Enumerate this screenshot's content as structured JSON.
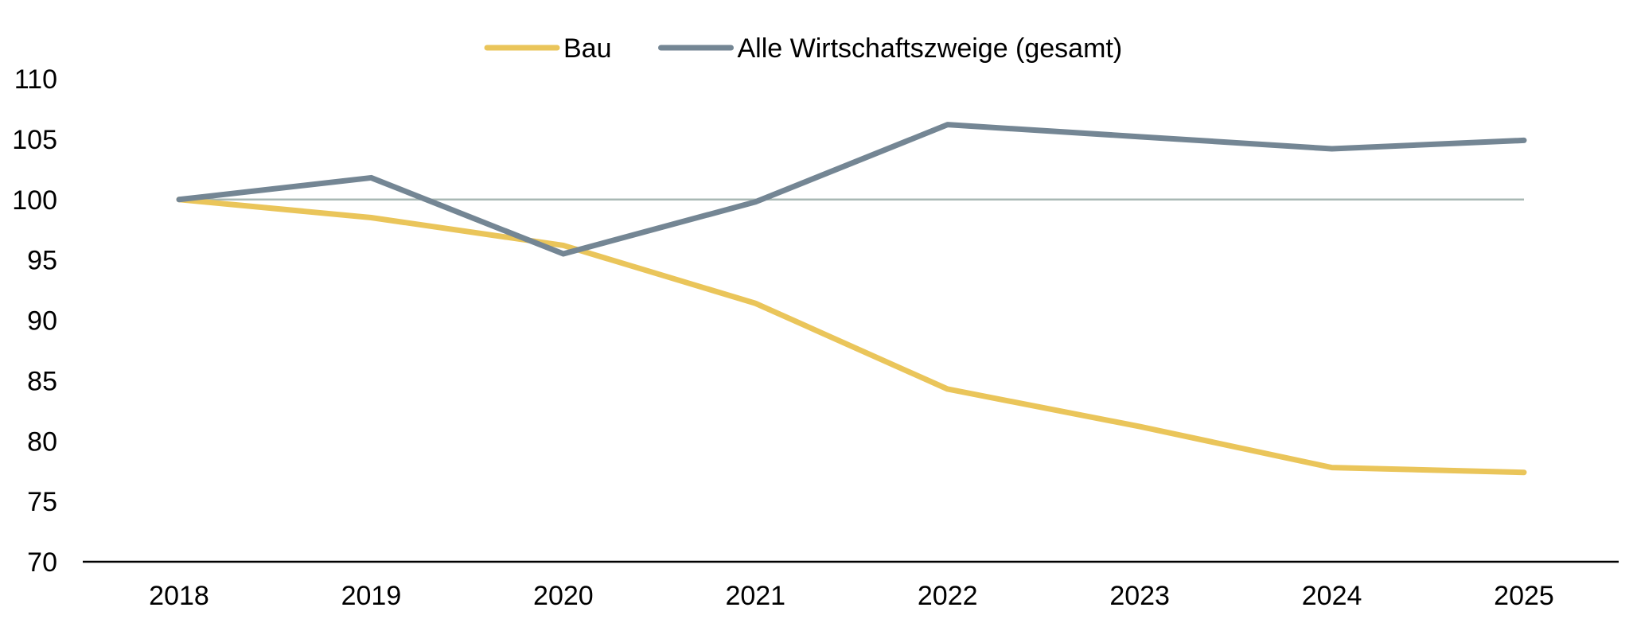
{
  "chart_data": {
    "type": "line",
    "title": "",
    "xlabel": "",
    "ylabel": "",
    "categories": [
      "2018",
      "2019",
      "2020",
      "2021",
      "2022",
      "2023",
      "2024",
      "2025"
    ],
    "series": [
      {
        "name": "Bau",
        "color": "#EAC55A",
        "values": [
          100.0,
          98.5,
          96.2,
          91.4,
          84.3,
          81.2,
          77.8,
          77.4
        ]
      },
      {
        "name": "Alle Wirtschaftszweige (gesamt)",
        "color": "#748694",
        "values": [
          100.0,
          101.8,
          95.5,
          99.8,
          106.2,
          105.2,
          104.2,
          104.9
        ]
      }
    ],
    "reference_line": {
      "value": 100,
      "color": "#A9B8B4"
    },
    "ylim": [
      70,
      110
    ],
    "yticks": [
      "70",
      "75",
      "80",
      "85",
      "90",
      "95",
      "100",
      "105",
      "110"
    ],
    "grid": false,
    "legend_position": "top-center"
  }
}
